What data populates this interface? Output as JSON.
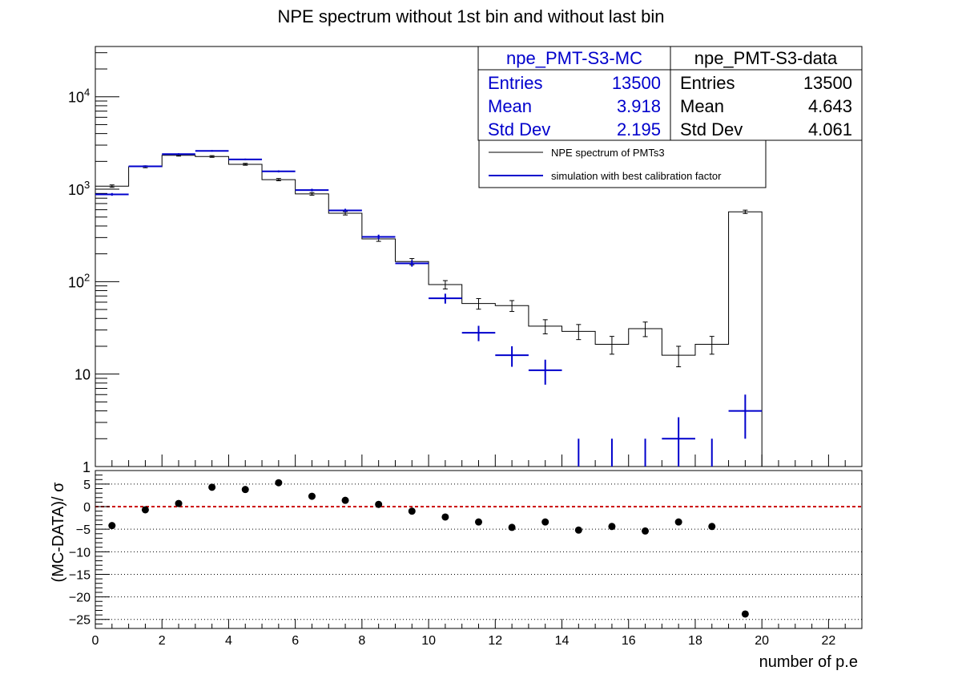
{
  "colors": {
    "data": "#000000",
    "mc": "#0000cc",
    "zero_line": "#cc0000",
    "grid": "#000000"
  },
  "statbox_mc": {
    "title": "npe_PMT-S3-MC",
    "entries_label": "Entries",
    "entries_value": "13500",
    "mean_label": "Mean",
    "mean_value": "3.918",
    "std_label": "Std Dev",
    "std_value": "2.195"
  },
  "statbox_data": {
    "title": "npe_PMT-S3-data",
    "entries_label": "Entries",
    "entries_value": "13500",
    "mean_label": "Mean",
    "mean_value": "4.643",
    "std_label": "Std Dev",
    "std_value": "4.061"
  },
  "chart_data": [
    {
      "type": "histogram",
      "title": "NPE spectrum without 1st bin and without last bin",
      "xlabel": "number of p.e",
      "ylabel": "",
      "xlim": [
        0,
        23
      ],
      "ylim": [
        1,
        35000
      ],
      "yscale": "log",
      "ytick_labels": [
        "1",
        "10",
        "10^2",
        "10^3",
        "10^4"
      ],
      "legend_position": "top-right",
      "bin_width": 1,
      "x": [
        0.5,
        1.5,
        2.5,
        3.5,
        4.5,
        5.5,
        6.5,
        7.5,
        8.5,
        9.5,
        10.5,
        11.5,
        12.5,
        13.5,
        14.5,
        15.5,
        16.5,
        17.5,
        18.5,
        19.5
      ],
      "series": [
        {
          "name": "NPE spectrum of PMTs3",
          "style": "step-with-errors",
          "values": [
            1080,
            1750,
            2330,
            2260,
            1860,
            1270,
            890,
            550,
            290,
            165,
            93,
            58,
            55,
            33,
            29,
            21,
            31,
            16,
            21,
            570
          ]
        },
        {
          "name": "simulation with best calibration factor",
          "style": "crosses",
          "values": [
            880,
            1770,
            2400,
            2600,
            2100,
            1560,
            980,
            590,
            305,
            158,
            66,
            28,
            16,
            11,
            1,
            1,
            1,
            2,
            1,
            4
          ]
        }
      ]
    },
    {
      "type": "scatter",
      "title": "",
      "xlabel": "number of p.e",
      "ylabel": "(MC-DATA)/ σ",
      "xlim": [
        0,
        23
      ],
      "ylim": [
        -27,
        8
      ],
      "yticks": [
        5,
        0,
        -5,
        -10,
        -15,
        -20,
        -25
      ],
      "xticks": [
        0,
        2,
        4,
        6,
        8,
        10,
        12,
        14,
        16,
        18,
        20,
        22
      ],
      "x": [
        0.5,
        1.5,
        2.5,
        3.5,
        4.5,
        5.5,
        6.5,
        7.5,
        8.5,
        9.5,
        10.5,
        11.5,
        12.5,
        13.5,
        14.5,
        15.5,
        16.5,
        17.5,
        18.5,
        19.5
      ],
      "values": [
        -4.2,
        -0.7,
        0.7,
        4.3,
        3.8,
        5.3,
        2.3,
        1.4,
        0.5,
        -1.0,
        -2.3,
        -3.4,
        -4.6,
        -3.4,
        -5.2,
        -4.4,
        -5.4,
        -3.4,
        -4.4,
        -23.8
      ]
    }
  ]
}
